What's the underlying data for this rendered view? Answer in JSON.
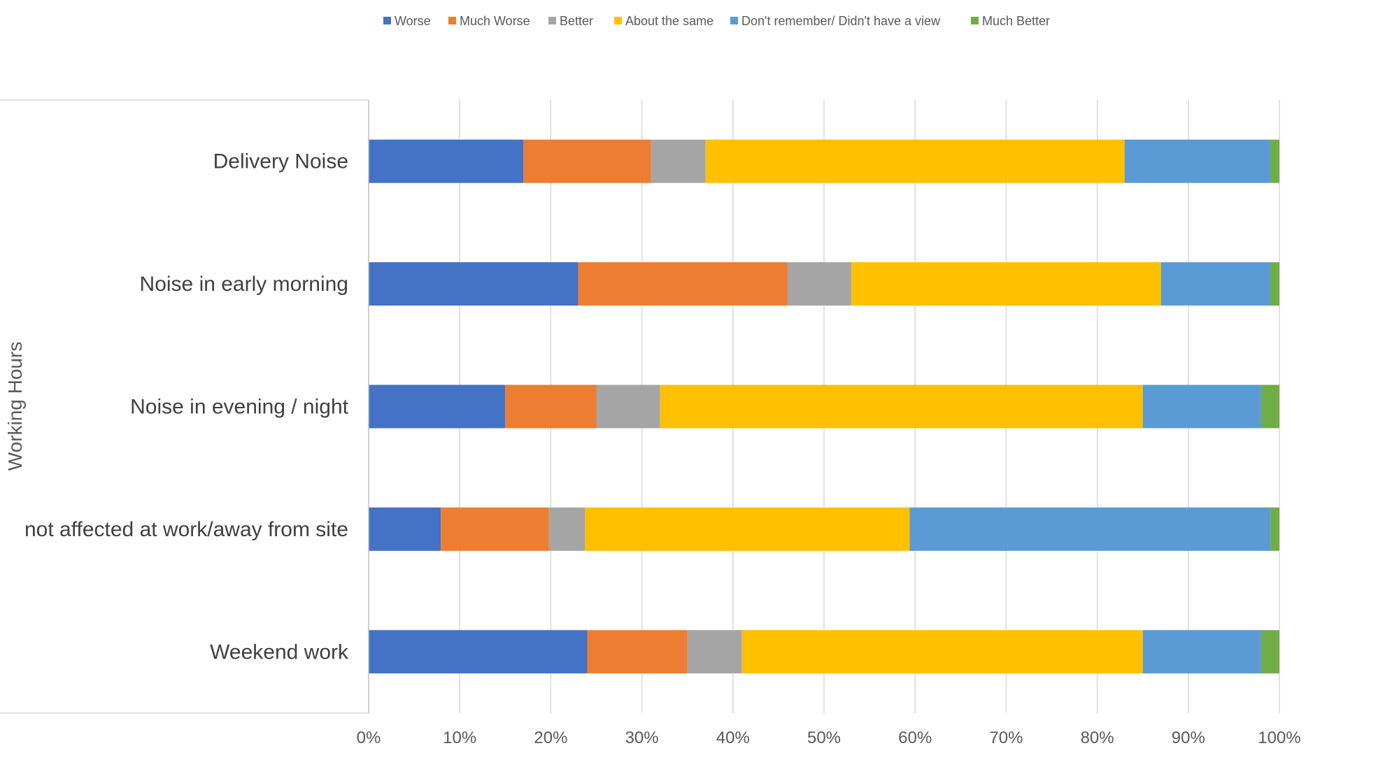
{
  "chart_data": {
    "type": "bar",
    "orientation": "horizontal",
    "stacking": "percent",
    "ylabel": "Working Hours",
    "xlim": [
      0,
      100
    ],
    "x_ticks": [
      "0%",
      "10%",
      "20%",
      "30%",
      "40%",
      "50%",
      "60%",
      "70%",
      "80%",
      "90%",
      "100%"
    ],
    "grid": true,
    "legend_position": "top",
    "categories": [
      "Delivery Noise",
      "Noise in early morning",
      "Noise in evening / night",
      "not affected at work/away from site",
      "Weekend work"
    ],
    "series": [
      {
        "name": "Worse",
        "color": "#4472C4",
        "values": [
          17,
          23,
          15,
          8,
          24
        ]
      },
      {
        "name": "Much Worse",
        "color": "#ED7D31",
        "values": [
          14,
          23,
          10,
          12,
          11
        ]
      },
      {
        "name": "Better",
        "color": "#A5A5A5",
        "values": [
          6,
          7,
          7,
          4,
          6
        ]
      },
      {
        "name": "About the same",
        "color": "#FFC000",
        "values": [
          46,
          34,
          53,
          36,
          44
        ]
      },
      {
        "name": "Don't remember/ Didn't have a view",
        "color": "#5B9BD5",
        "values": [
          16,
          12,
          13,
          40,
          13
        ]
      },
      {
        "name": "Much Better",
        "color": "#70AD47",
        "values": [
          1,
          1,
          2,
          1,
          2
        ]
      }
    ]
  }
}
